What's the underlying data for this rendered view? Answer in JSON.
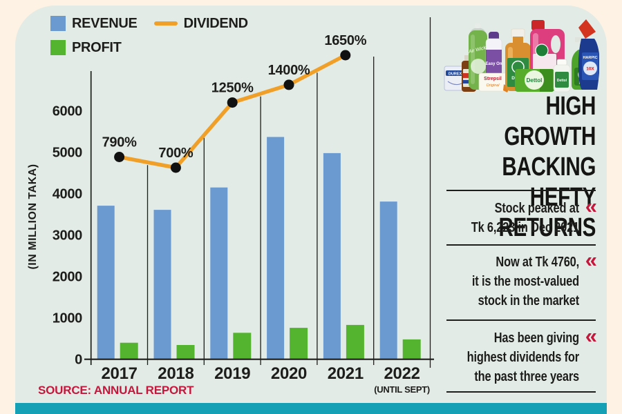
{
  "page": {
    "background": "#fdf2e3",
    "card_background": "#e2ebe5",
    "accent_teal": "#16a0b6",
    "accent_red": "#c6163c"
  },
  "legend": {
    "items": [
      {
        "label": "REVENUE",
        "color": "#6b9ad1",
        "swatch": "square"
      },
      {
        "label": "PROFIT",
        "color": "#55b42f",
        "swatch": "square"
      },
      {
        "label": "DIVIDEND",
        "color": "#f0a028",
        "swatch": "line"
      }
    ]
  },
  "chart_data": {
    "type": "bar",
    "categories": [
      "2017",
      "2018",
      "2019",
      "2020",
      "2021",
      "2022"
    ],
    "x_note": {
      "category": "2022",
      "label": "(UNTIL SEPT)"
    },
    "series": [
      {
        "name": "REVENUE",
        "type": "bar",
        "color": "#6b9ad1",
        "values": [
          3710,
          3610,
          4150,
          5370,
          4980,
          3810
        ]
      },
      {
        "name": "PROFIT",
        "type": "bar",
        "color": "#55b42f",
        "values": [
          400,
          345,
          640,
          760,
          830,
          480
        ]
      },
      {
        "name": "DIVIDEND",
        "type": "line",
        "color": "#f0a028",
        "unit": "%",
        "values": [
          790,
          700,
          1250,
          1400,
          1650,
          null
        ],
        "labels": [
          "790%",
          "700%",
          "1250%",
          "1400%",
          "1650%"
        ]
      }
    ],
    "ylabel": "(IN MILLION TAKA)",
    "y_ticks": [
      0,
      1000,
      2000,
      3000,
      4000,
      5000,
      6000
    ],
    "ylim": [
      0,
      6800
    ],
    "grid": "vertical-year-separators",
    "legend_position": "top-left"
  },
  "source": {
    "label": "SOURCE: ANNUAL REPORT"
  },
  "panel": {
    "headline": "HIGH GROWTH\nBACKING HEFTY\nRETURNS",
    "chevron": "«",
    "bullets": [
      "Stock peaked at\nTk 6,223 in Dec 2021",
      "Now at Tk 4760,\nit is the most-valued\nstock in the market",
      "Has been giving\nhighest dividends for\nthe past three years"
    ],
    "products": [
      "DUREX",
      "Air Wick",
      "Easy On",
      "Strepsil",
      "Original",
      "Dettol",
      "CLEANER",
      "Dettol",
      "Dettol",
      "Dettol",
      "Dettol",
      "HARPIC",
      "10X"
    ]
  }
}
